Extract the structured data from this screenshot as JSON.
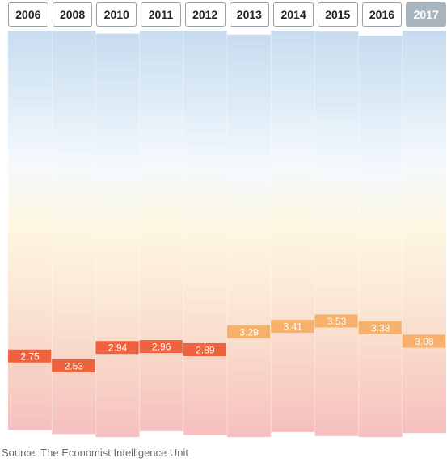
{
  "tabs": {
    "years": [
      "2006",
      "2008",
      "2010",
      "2011",
      "2012",
      "2013",
      "2014",
      "2015",
      "2016",
      "2017"
    ],
    "active": "2017"
  },
  "chart_data": {
    "type": "bar",
    "categories": [
      "2006",
      "2008",
      "2010",
      "2011",
      "2012",
      "2013",
      "2014",
      "2015",
      "2016",
      "2017"
    ],
    "values": [
      2.75,
      2.53,
      2.94,
      2.96,
      2.89,
      3.29,
      3.41,
      3.53,
      3.38,
      3.08
    ],
    "value_labels": [
      "2.75",
      "2.53",
      "2.94",
      "2.96",
      "2.89",
      "3.29",
      "3.41",
      "3.53",
      "3.38",
      "3.08"
    ],
    "ylim": [
      1,
      10
    ],
    "colors": {
      "low": "#f0623e",
      "high": "#f7b16a",
      "color_threshold": 3.0,
      "band_gradient": [
        "#f6c0c0",
        "#f8d5c6",
        "#fbe7d6",
        "#fdf6e0",
        "#f5f9fd",
        "#ddebf6",
        "#c9dcef"
      ]
    }
  },
  "footer": {
    "source": "Source: The Economist Intelligence Unit"
  }
}
